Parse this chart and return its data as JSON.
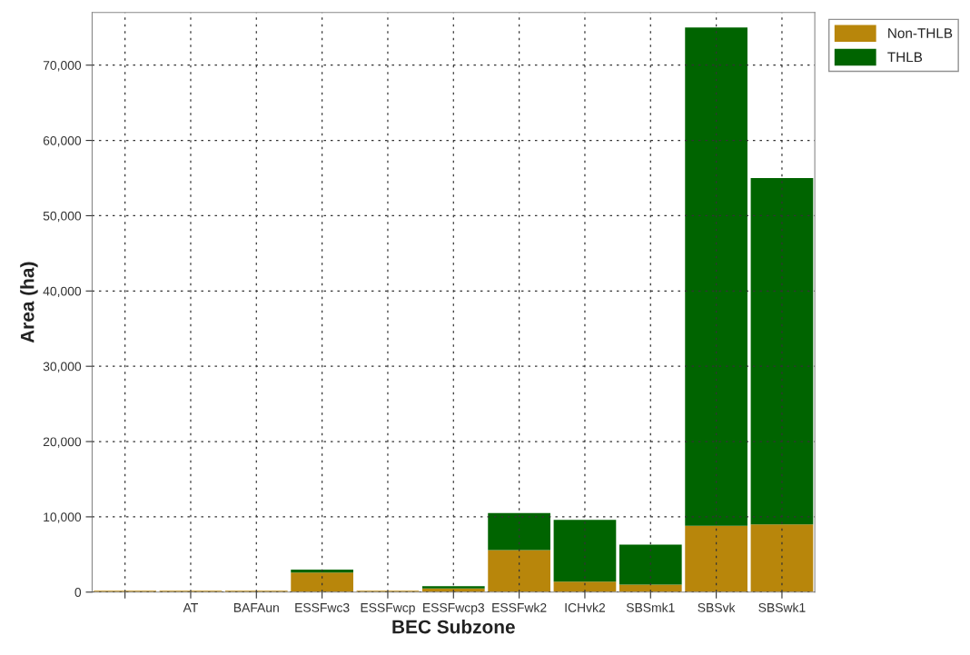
{
  "chart_data": {
    "type": "bar",
    "stacked": true,
    "xlabel": "BEC Subzone",
    "ylabel": "Area (ha)",
    "categories": [
      null,
      "AT",
      "BAFAun",
      "ESSFwc3",
      "ESSFwcp",
      "ESSFwcp3",
      "ESSFwk2",
      "ICHvk2",
      "SBSmk1",
      "SBSvk",
      "SBSwk1"
    ],
    "series": [
      {
        "name": "Non-THLB",
        "color": "#b8860b",
        "values": [
          200,
          200,
          200,
          2600,
          200,
          500,
          5600,
          1400,
          1000,
          8800,
          9000
        ]
      },
      {
        "name": "THLB",
        "color": "#006400",
        "values": [
          0,
          0,
          0,
          400,
          0,
          300,
          4900,
          8200,
          5300,
          66200,
          46000
        ]
      }
    ],
    "ylim": [
      0,
      77000
    ],
    "yticks": [
      {
        "value": 0,
        "label": "0"
      },
      {
        "value": 10000,
        "label": "10,000"
      },
      {
        "value": 20000,
        "label": "20,000"
      },
      {
        "value": 30000,
        "label": "30,000"
      },
      {
        "value": 40000,
        "label": "40,000"
      },
      {
        "value": 50000,
        "label": "50,000"
      },
      {
        "value": 60000,
        "label": "60,000"
      },
      {
        "value": 70000,
        "label": "70,000"
      }
    ],
    "grid": true,
    "legend": "top right"
  }
}
